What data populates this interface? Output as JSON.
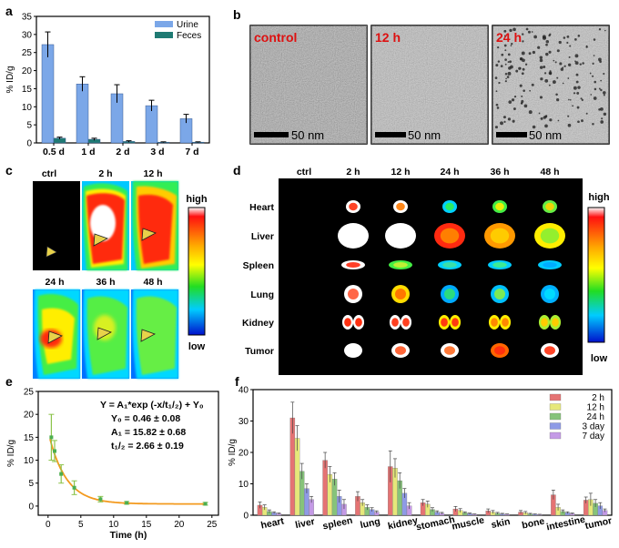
{
  "panels": {
    "a": "a",
    "b": "b",
    "c": "c",
    "d": "d",
    "e": "e",
    "f": "f"
  },
  "colors": {
    "urine": "#7ba7e8",
    "feces": "#1f7a73",
    "f_series": [
      "#e57373",
      "#e6e87a",
      "#86c37a",
      "#8e9ae6",
      "#c49ae6"
    ],
    "fit_line": "#f39a1e",
    "points": "#4caf50",
    "error": "#8bc34a"
  },
  "panel_b": {
    "images": [
      {
        "label": "control",
        "scale": "50 nm"
      },
      {
        "label": "12 h",
        "scale": "50 nm"
      },
      {
        "label": "24 h",
        "scale": "50 nm"
      }
    ]
  },
  "panel_c": {
    "times": [
      "ctrl",
      "2 h",
      "12 h",
      "24 h",
      "36 h",
      "48 h"
    ],
    "colorbar": {
      "high": "high",
      "low": "low"
    }
  },
  "panel_d": {
    "times": [
      "ctrl",
      "2 h",
      "12 h",
      "24 h",
      "36 h",
      "48 h"
    ],
    "organs": [
      "Heart",
      "Liver",
      "Spleen",
      "Lung",
      "Kidney",
      "Tumor"
    ],
    "colorbar": {
      "high": "high",
      "low": "low"
    }
  },
  "chart_data": [
    {
      "id": "a",
      "type": "bar",
      "categories": [
        "0.5 d",
        "1 d",
        "2 d",
        "3 d",
        "7 d"
      ],
      "series": [
        {
          "name": "Urine",
          "values": [
            27.2,
            16.3,
            13.6,
            10.3,
            6.7
          ],
          "errors": [
            3.5,
            2.0,
            2.5,
            1.5,
            1.2
          ]
        },
        {
          "name": "Feces",
          "values": [
            1.3,
            1.0,
            0.4,
            0.2,
            0.2
          ],
          "errors": [
            0.3,
            0.3,
            0.2,
            0.1,
            0.1
          ]
        }
      ],
      "ylabel": "% ID/g",
      "ylim": [
        0,
        35
      ],
      "yticks": [
        0,
        5,
        10,
        15,
        20,
        25,
        30,
        35
      ],
      "legend": "top-right"
    },
    {
      "id": "e",
      "type": "scatter",
      "x": [
        0.5,
        1,
        2,
        4,
        8,
        12,
        24
      ],
      "y": [
        15.0,
        12.0,
        7.0,
        4.0,
        1.5,
        0.7,
        0.5
      ],
      "errors": [
        5.0,
        2.3,
        2.0,
        1.5,
        0.6,
        0.3,
        0.3
      ],
      "fit": {
        "equation": "Y = A₁*exp (-x/t₁/₂) + Y₀",
        "y0": "Y₀ = 0.46 ± 0.08",
        "a1": "A₁ = 15.82 ± 0.68",
        "t12": "t₁/₂ = 2.66 ± 0.19",
        "Y0": 0.46,
        "A1": 15.82,
        "t": 2.66
      },
      "xlabel": "Time (h)",
      "ylabel": "% ID/g",
      "xlim": [
        -1.5,
        26
      ],
      "ylim": [
        -2,
        25
      ],
      "xticks": [
        0,
        5,
        10,
        15,
        20,
        25
      ],
      "yticks": [
        0,
        5,
        10,
        15,
        20,
        25
      ]
    },
    {
      "id": "f",
      "type": "bar",
      "categories": [
        "heart",
        "liver",
        "spleen",
        "lung",
        "kidney",
        "stomach",
        "muscle",
        "skin",
        "bone",
        "intestine",
        "tumor"
      ],
      "series": [
        {
          "name": "2 h",
          "values": [
            3.2,
            31.0,
            17.5,
            6.0,
            15.5,
            4.0,
            2.0,
            1.4,
            1.0,
            6.5,
            4.8
          ],
          "errors": [
            1.0,
            5.0,
            2.5,
            1.5,
            5.0,
            1.0,
            0.8,
            0.6,
            0.5,
            1.5,
            1.0
          ]
        },
        {
          "name": "12 h",
          "values": [
            2.5,
            24.5,
            13.0,
            4.0,
            15.0,
            3.5,
            1.5,
            1.0,
            0.8,
            2.5,
            5.0
          ],
          "errors": [
            0.8,
            4.0,
            2.5,
            1.0,
            3.0,
            1.0,
            0.6,
            0.5,
            0.4,
            1.0,
            2.0
          ]
        },
        {
          "name": "24 h",
          "values": [
            1.2,
            14.0,
            11.5,
            2.5,
            11.0,
            1.8,
            0.8,
            0.6,
            0.4,
            1.2,
            3.8
          ],
          "errors": [
            0.5,
            2.5,
            2.0,
            0.8,
            2.5,
            0.6,
            0.3,
            0.3,
            0.2,
            0.5,
            1.2
          ]
        },
        {
          "name": "3 day",
          "values": [
            0.8,
            8.5,
            6.0,
            1.8,
            7.0,
            1.0,
            0.5,
            0.4,
            0.3,
            0.8,
            3.0
          ],
          "errors": [
            0.3,
            1.5,
            2.0,
            0.6,
            1.5,
            0.4,
            0.2,
            0.2,
            0.1,
            0.3,
            1.0
          ]
        },
        {
          "name": "7 day",
          "values": [
            0.5,
            5.0,
            3.5,
            1.0,
            3.0,
            0.6,
            0.3,
            0.3,
            0.2,
            0.5,
            1.5
          ],
          "errors": [
            0.2,
            1.0,
            1.5,
            0.4,
            1.0,
            0.3,
            0.1,
            0.1,
            0.1,
            0.2,
            0.5
          ]
        }
      ],
      "ylabel": "% ID/g",
      "ylim": [
        0,
        40
      ],
      "yticks": [
        0,
        10,
        20,
        30,
        40
      ],
      "legend": "top-right"
    }
  ]
}
